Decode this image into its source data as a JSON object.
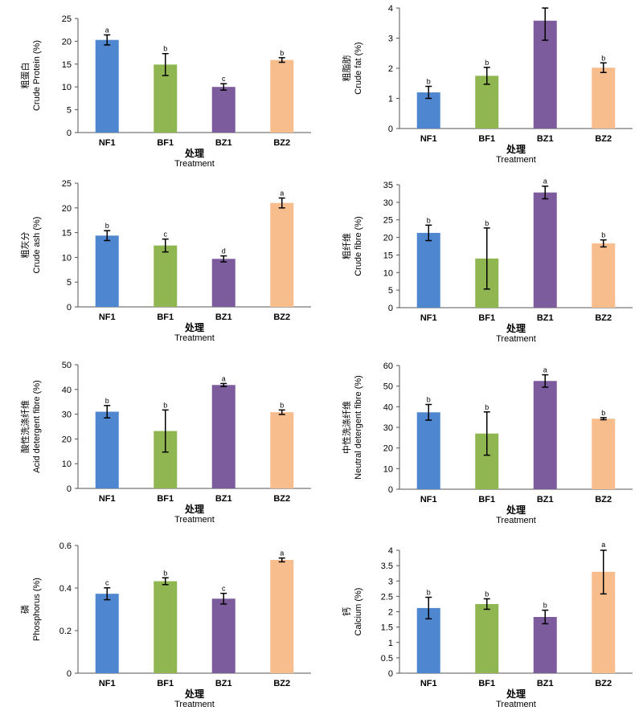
{
  "colors": {
    "NF1": "#4f86d0",
    "BF1": "#8fb651",
    "BZ1": "#7d5c9e",
    "BZ2": "#f8bd8d"
  },
  "chart_data": [
    {
      "type": "bar",
      "ylabel_cn": "粗蛋白",
      "ylabel": "Crude Protein (%)",
      "xlabel_cn": "处理",
      "xlabel": "Treatment",
      "categories": [
        "NF1",
        "BF1",
        "BZ1",
        "BZ2"
      ],
      "values": [
        20.3,
        14.9,
        10.0,
        15.9
      ],
      "errors": [
        1.1,
        2.4,
        0.7,
        0.5
      ],
      "letters": [
        "a",
        "b",
        "c",
        "b"
      ],
      "ylim": [
        0,
        25
      ],
      "ticks": [
        "0",
        "5",
        "10",
        "15",
        "20",
        "25"
      ]
    },
    {
      "type": "bar",
      "ylabel_cn": "粗脂肪",
      "ylabel": "Crude fat (%)",
      "xlabel_cn": "处理",
      "xlabel": "Treatment",
      "categories": [
        "NF1",
        "BF1",
        "BZ1",
        "BZ2"
      ],
      "values": [
        1.2,
        1.75,
        3.58,
        2.02
      ],
      "errors": [
        0.2,
        0.28,
        0.65,
        0.16
      ],
      "letters": [
        "b",
        "b",
        "a",
        "b"
      ],
      "ylim": [
        0,
        4
      ],
      "ticks": [
        "0",
        "1",
        "2",
        "3",
        "4"
      ]
    },
    {
      "type": "bar",
      "ylabel_cn": "粗灰分",
      "ylabel": "Crude ash (%)",
      "xlabel_cn": "处理",
      "xlabel": "Treatment",
      "categories": [
        "NF1",
        "BF1",
        "BZ1",
        "BZ2"
      ],
      "values": [
        14.4,
        12.4,
        9.7,
        21.0
      ],
      "errors": [
        1.0,
        1.3,
        0.6,
        1.0
      ],
      "letters": [
        "b",
        "c",
        "d",
        "a"
      ],
      "ylim": [
        0,
        25
      ],
      "ticks": [
        "0",
        "5",
        "10",
        "15",
        "20",
        "25"
      ]
    },
    {
      "type": "bar",
      "ylabel_cn": "粗纤维",
      "ylabel": "Crude fibre (%)",
      "xlabel_cn": "处理",
      "xlabel": "Treatment",
      "categories": [
        "NF1",
        "BF1",
        "BZ1",
        "BZ2"
      ],
      "values": [
        21.3,
        14.0,
        32.8,
        18.3
      ],
      "errors": [
        2.2,
        8.7,
        1.8,
        1.0
      ],
      "letters": [
        "b",
        "b",
        "a",
        "b"
      ],
      "ylim": [
        0,
        35
      ],
      "ticks": [
        "0",
        "5",
        "10",
        "15",
        "20",
        "25",
        "30",
        "35"
      ]
    },
    {
      "type": "bar",
      "ylabel_cn": "酸性洗涤纤维",
      "ylabel": "Acid detergent fibre (%)",
      "xlabel_cn": "处理",
      "xlabel": "Treatment",
      "categories": [
        "NF1",
        "BF1",
        "BZ1",
        "BZ2"
      ],
      "values": [
        31.0,
        23.2,
        41.8,
        30.8
      ],
      "errors": [
        2.5,
        8.5,
        0.6,
        0.9
      ],
      "letters": [
        "b",
        "b",
        "a",
        "b"
      ],
      "ylim": [
        0,
        50
      ],
      "ticks": [
        "0",
        "10",
        "20",
        "30",
        "40",
        "50"
      ]
    },
    {
      "type": "bar",
      "ylabel_cn": "中性洗涤纤维",
      "ylabel": "Neutral detergent fibre (%)",
      "xlabel_cn": "处理",
      "xlabel": "Treatment",
      "categories": [
        "NF1",
        "BF1",
        "BZ1",
        "BZ2"
      ],
      "values": [
        37.3,
        27.0,
        52.5,
        34.2
      ],
      "errors": [
        3.8,
        10.5,
        3.0,
        0.5
      ],
      "letters": [
        "b",
        "b",
        "a",
        "b"
      ],
      "ylim": [
        0,
        60
      ],
      "ticks": [
        "0",
        "10",
        "20",
        "30",
        "40",
        "50",
        "60"
      ]
    },
    {
      "type": "bar",
      "ylabel_cn": "磷",
      "ylabel": "Phosphorus (%)",
      "xlabel_cn": "处理",
      "xlabel": "Treatment",
      "categories": [
        "NF1",
        "BF1",
        "BZ1",
        "BZ2"
      ],
      "values": [
        0.373,
        0.432,
        0.35,
        0.532
      ],
      "errors": [
        0.028,
        0.016,
        0.025,
        0.009
      ],
      "letters": [
        "c",
        "b",
        "c",
        "a"
      ],
      "ylim": [
        0,
        0.6
      ],
      "ticks": [
        "0",
        "0.2",
        "0.4",
        "0.6"
      ]
    },
    {
      "type": "bar",
      "ylabel_cn": "钙",
      "ylabel": "Calcium (%)",
      "xlabel_cn": "处理",
      "xlabel": "Treatment",
      "categories": [
        "NF1",
        "BF1",
        "BZ1",
        "BZ2"
      ],
      "values": [
        2.12,
        2.25,
        1.83,
        3.3
      ],
      "errors": [
        0.35,
        0.17,
        0.22,
        0.72
      ],
      "letters": [
        "b",
        "b",
        "b",
        "a"
      ],
      "ylim": [
        0,
        4
      ],
      "ticks": [
        "0",
        "0.5",
        "1",
        "1.5",
        "2",
        "2.5",
        "3",
        "3.5",
        "4"
      ]
    }
  ]
}
